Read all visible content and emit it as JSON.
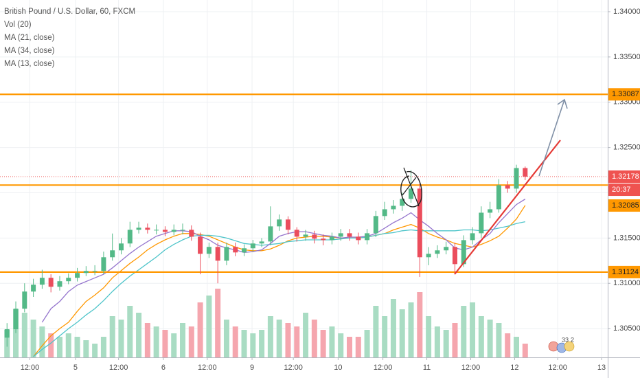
{
  "chart_data": {
    "type": "candlestick",
    "title": "British Pound / U.S. Dollar, 60, FXCM",
    "xlim": [
      -0.8,
      68.4
    ],
    "xticks": [
      {
        "value": 2.6,
        "label": "12:00"
      },
      {
        "value": 7.8,
        "label": "5"
      },
      {
        "value": 12.7,
        "label": "12:00"
      },
      {
        "value": 17.8,
        "label": "6"
      },
      {
        "value": 22.8,
        "label": "12:00"
      },
      {
        "value": 27.9,
        "label": "9"
      },
      {
        "value": 32.6,
        "label": "12:00"
      },
      {
        "value": 37.7,
        "label": "10"
      },
      {
        "value": 42.8,
        "label": "12:00"
      },
      {
        "value": 47.8,
        "label": "11"
      },
      {
        "value": 52.8,
        "label": "12:00"
      },
      {
        "value": 57.8,
        "label": "12"
      },
      {
        "value": 62.7,
        "label": "12:00"
      },
      {
        "value": 67.7,
        "label": "13"
      }
    ],
    "ylim": [
      1.30182,
      1.34129
    ],
    "yticks": [
      {
        "value": 1.305,
        "label": "1.30500"
      },
      {
        "value": 1.31,
        "label": "1.31000"
      },
      {
        "value": 1.315,
        "label": "1.31500"
      },
      {
        "value": 1.32,
        "label": "1.32000"
      },
      {
        "value": 1.325,
        "label": "1.32500"
      },
      {
        "value": 1.33,
        "label": "1.33000"
      },
      {
        "value": 1.335,
        "label": "1.33500"
      },
      {
        "value": 1.34,
        "label": "1.34000"
      }
    ],
    "grid": true,
    "up_color": "#53b987",
    "down_color": "#eb4d5c",
    "open": [
      1.304,
      1.30493,
      1.3072,
      1.30909,
      1.30985,
      1.31061,
      1.30962,
      1.31023,
      1.31061,
      1.31114,
      1.31137,
      1.31137,
      1.31288,
      1.31364,
      1.3144,
      1.31591,
      1.31614,
      1.31591,
      1.31591,
      1.31568,
      1.31591,
      1.31591,
      1.31515,
      1.31326,
      1.31402,
      1.3125,
      1.31402,
      1.31341,
      1.31387,
      1.3144,
      1.31462,
      1.31629,
      1.31705,
      1.31591,
      1.31515,
      1.31538,
      1.31493,
      1.31477,
      1.31515,
      1.31553,
      1.31515,
      1.31477,
      1.31553,
      1.31743,
      1.31818,
      1.31856,
      1.31932,
      1.32046,
      1.31288,
      1.31326,
      1.31364,
      1.31402,
      1.31212,
      1.31477,
      1.31553,
      1.3178,
      1.31818,
      1.32084,
      1.32046,
      1.32273
    ],
    "high": [
      1.3056,
      1.308,
      1.31,
      1.3105,
      1.3115,
      1.311,
      1.3108,
      1.3111,
      1.3117,
      1.3119,
      1.312,
      1.3135,
      1.3155,
      1.315,
      1.3168,
      1.3168,
      1.3166,
      1.3165,
      1.3163,
      1.3165,
      1.3166,
      1.3164,
      1.3156,
      1.3145,
      1.3145,
      1.3145,
      1.3145,
      1.3143,
      1.3148,
      1.315,
      1.3185,
      1.3176,
      1.3174,
      1.3162,
      1.3159,
      1.3158,
      1.3154,
      1.3156,
      1.316,
      1.316,
      1.3156,
      1.316,
      1.318,
      1.319,
      1.3192,
      1.32,
      1.3225,
      1.321,
      1.314,
      1.3142,
      1.3146,
      1.3145,
      1.3153,
      1.3162,
      1.3185,
      1.319,
      1.3215,
      1.3213,
      1.3231,
      1.3229
    ],
    "low": [
      1.303,
      1.3045,
      1.3068,
      1.3085,
      1.3094,
      1.309,
      1.3092,
      1.3099,
      1.3102,
      1.3108,
      1.3109,
      1.311,
      1.3125,
      1.3132,
      1.314,
      1.3155,
      1.3155,
      1.3154,
      1.3152,
      1.3153,
      1.3154,
      1.3147,
      1.311,
      1.3128,
      1.31,
      1.312,
      1.313,
      1.313,
      1.3135,
      1.314,
      1.3142,
      1.3158,
      1.3154,
      1.3146,
      1.3147,
      1.3144,
      1.3142,
      1.3143,
      1.3147,
      1.3147,
      1.3143,
      1.3143,
      1.3151,
      1.317,
      1.3177,
      1.318,
      1.3189,
      1.3107,
      1.312,
      1.3128,
      1.3132,
      1.311,
      1.3118,
      1.3143,
      1.315,
      1.3172,
      1.3178,
      1.32,
      1.32,
      1.3214
    ],
    "close": [
      1.30493,
      1.3072,
      1.30909,
      1.30985,
      1.31061,
      1.30962,
      1.31023,
      1.31061,
      1.31114,
      1.31137,
      1.31137,
      1.31288,
      1.31364,
      1.3144,
      1.31591,
      1.31614,
      1.31591,
      1.31591,
      1.31568,
      1.31591,
      1.31591,
      1.31515,
      1.31326,
      1.31402,
      1.3125,
      1.31402,
      1.31341,
      1.31387,
      1.3144,
      1.31462,
      1.31629,
      1.31705,
      1.31591,
      1.31515,
      1.31538,
      1.31493,
      1.31477,
      1.31515,
      1.31553,
      1.31515,
      1.31477,
      1.31553,
      1.31743,
      1.31818,
      1.31856,
      1.31932,
      1.32046,
      1.31288,
      1.31326,
      1.31364,
      1.31402,
      1.31212,
      1.31477,
      1.31553,
      1.3178,
      1.31818,
      1.32084,
      1.32046,
      1.32273,
      1.32178
    ],
    "volume": {
      "name": "Vol (20)",
      "ylim": [
        0,
        130
      ],
      "up_color": "#a9dcc3",
      "down_color": "#f5a6ae",
      "values": [
        40,
        70,
        65,
        55,
        45,
        35,
        30,
        35,
        30,
        25,
        20,
        30,
        60,
        55,
        75,
        65,
        50,
        45,
        40,
        35,
        50,
        45,
        80,
        90,
        100,
        55,
        45,
        40,
        35,
        40,
        60,
        55,
        50,
        45,
        65,
        55,
        40,
        45,
        35,
        30,
        30,
        40,
        75,
        60,
        85,
        70,
        80,
        95,
        60,
        45,
        40,
        50,
        75,
        80,
        60,
        55,
        50,
        35,
        30,
        20
      ]
    },
    "series": [
      {
        "name": "MA (21, close)",
        "color": "#ff9800",
        "values": [
          null,
          null,
          null,
          1.3019,
          1.3031,
          1.3042,
          1.305,
          1.3057,
          1.3069,
          1.308,
          1.3087,
          1.3095,
          1.3106,
          1.3114,
          1.3122,
          1.3129,
          1.3137,
          1.3143,
          1.3148,
          1.3152,
          1.3155,
          1.3155,
          1.3154,
          1.3152,
          1.3148,
          1.3144,
          1.314,
          1.3137,
          1.3136,
          1.3136,
          1.3138,
          1.3142,
          1.3147,
          1.315,
          1.3151,
          1.3152,
          1.3152,
          1.3151,
          1.315,
          1.315,
          1.315,
          1.3151,
          1.3153,
          1.3155,
          1.3159,
          1.3162,
          1.3165,
          1.3161,
          1.3155,
          1.3151,
          1.3148,
          1.3144,
          1.3142,
          1.314,
          1.3143,
          1.3147,
          1.3152,
          1.3161,
          1.3171,
          1.3186
        ]
      },
      {
        "name": "MA (34, close)",
        "color": "#4dc4c9",
        "values": [
          null,
          null,
          null,
          1.3019,
          1.3027,
          1.3034,
          1.3042,
          1.305,
          1.3057,
          1.3065,
          1.3072,
          1.3081,
          1.3091,
          1.31,
          1.3108,
          1.3115,
          1.3122,
          1.3129,
          1.3137,
          1.3143,
          1.3148,
          1.3152,
          1.3153,
          1.3153,
          1.3152,
          1.315,
          1.3147,
          1.3144,
          1.3143,
          1.3142,
          1.3143,
          1.3144,
          1.3146,
          1.3147,
          1.3148,
          1.3148,
          1.3148,
          1.3148,
          1.3149,
          1.315,
          1.315,
          1.3151,
          1.3153,
          1.3155,
          1.3156,
          1.3158,
          1.3159,
          1.3158,
          1.3158,
          1.3158,
          1.3158,
          1.3158,
          1.3159,
          1.3159,
          1.3158,
          1.3159,
          1.3161,
          1.3163,
          1.3166,
          1.3168
        ]
      },
      {
        "name": "MA (13, close)",
        "color": "#9575cd",
        "values": [
          null,
          null,
          null,
          null,
          1.3057,
          1.3072,
          1.308,
          1.3091,
          1.3098,
          1.3102,
          1.3106,
          1.311,
          1.3117,
          1.3125,
          1.3133,
          1.314,
          1.3146,
          1.3152,
          1.3155,
          1.3158,
          1.3158,
          1.3157,
          1.3152,
          1.3148,
          1.3142,
          1.3139,
          1.3137,
          1.3134,
          1.3135,
          1.3137,
          1.3144,
          1.3152,
          1.3155,
          1.3157,
          1.3157,
          1.3155,
          1.3153,
          1.3152,
          1.315,
          1.3151,
          1.3151,
          1.3152,
          1.3155,
          1.3161,
          1.3167,
          1.3172,
          1.3178,
          1.317,
          1.3163,
          1.3155,
          1.3148,
          1.3139,
          1.3137,
          1.314,
          1.3148,
          1.3155,
          1.3167,
          1.3177,
          1.3187,
          1.3193
        ]
      }
    ],
    "levels": {
      "color": "#ff9800",
      "values": [
        1.33087,
        1.32085,
        1.31124
      ]
    },
    "last_price_color": "#ef5350",
    "countdown": "20:37",
    "badge": [
      "33",
      "2"
    ]
  }
}
